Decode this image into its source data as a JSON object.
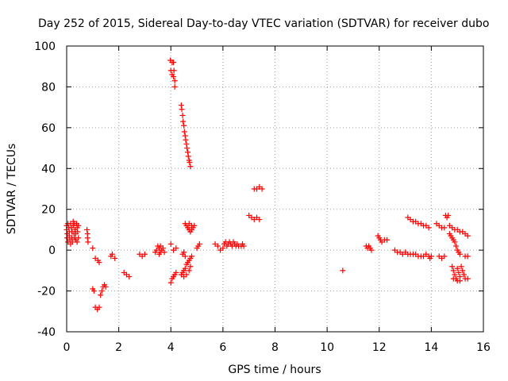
{
  "chart_data": {
    "type": "scatter",
    "title": "Day 252 of 2015, Sidereal Day-to-day VTEC variation (SDTVAR) for receiver dubo",
    "xlabel": "GPS time / hours",
    "ylabel": "SDTVAR / TECUs",
    "xlim": [
      0,
      16
    ],
    "ylim": [
      -40,
      100
    ],
    "xticks": [
      "0",
      "2",
      "4",
      "6",
      "8",
      "10",
      "12",
      "14",
      "16"
    ],
    "yticks": [
      "-40",
      "-20",
      "0",
      "20",
      "40",
      "60",
      "80",
      "100"
    ],
    "grid": true,
    "marker": "plus",
    "color": "#ff0000",
    "series": [
      {
        "name": "SDTVAR",
        "points": [
          [
            0.0,
            12
          ],
          [
            0.0,
            10
          ],
          [
            0.02,
            8
          ],
          [
            0.02,
            6
          ],
          [
            0.05,
            4
          ],
          [
            0.05,
            13
          ],
          [
            0.08,
            11
          ],
          [
            0.1,
            9
          ],
          [
            0.1,
            7
          ],
          [
            0.12,
            5
          ],
          [
            0.15,
            13
          ],
          [
            0.15,
            3
          ],
          [
            0.18,
            11
          ],
          [
            0.2,
            9
          ],
          [
            0.2,
            6
          ],
          [
            0.22,
            4
          ],
          [
            0.25,
            14
          ],
          [
            0.25,
            12
          ],
          [
            0.28,
            8
          ],
          [
            0.3,
            6
          ],
          [
            0.3,
            13
          ],
          [
            0.32,
            10
          ],
          [
            0.35,
            8
          ],
          [
            0.35,
            5
          ],
          [
            0.38,
            13
          ],
          [
            0.4,
            11
          ],
          [
            0.4,
            4
          ],
          [
            0.42,
            9
          ],
          [
            0.45,
            12
          ],
          [
            0.45,
            6
          ],
          [
            0.78,
            10
          ],
          [
            0.8,
            8
          ],
          [
            0.8,
            6
          ],
          [
            0.82,
            4
          ],
          [
            1.0,
            1
          ],
          [
            1.1,
            -4
          ],
          [
            1.2,
            -5
          ],
          [
            1.25,
            -6
          ],
          [
            1.0,
            -19
          ],
          [
            1.05,
            -20
          ],
          [
            1.1,
            -28
          ],
          [
            1.18,
            -29
          ],
          [
            1.25,
            -28
          ],
          [
            1.3,
            -22
          ],
          [
            1.35,
            -20
          ],
          [
            1.4,
            -18
          ],
          [
            1.45,
            -17
          ],
          [
            1.5,
            -18
          ],
          [
            1.7,
            -3
          ],
          [
            1.75,
            -2
          ],
          [
            1.85,
            -4
          ],
          [
            2.2,
            -11
          ],
          [
            2.3,
            -12
          ],
          [
            2.4,
            -13
          ],
          [
            2.8,
            -2
          ],
          [
            2.9,
            -3
          ],
          [
            3.0,
            -2
          ],
          [
            3.4,
            -1
          ],
          [
            3.45,
            0
          ],
          [
            3.5,
            2
          ],
          [
            3.55,
            1
          ],
          [
            3.6,
            -1
          ],
          [
            3.65,
            0
          ],
          [
            3.7,
            1
          ],
          [
            3.75,
            -1
          ],
          [
            3.55,
            -2
          ],
          [
            3.6,
            2
          ],
          [
            4.0,
            3
          ],
          [
            4.1,
            0
          ],
          [
            4.2,
            1
          ],
          [
            3.98,
            93
          ],
          [
            4.05,
            92
          ],
          [
            4.1,
            92
          ],
          [
            4.0,
            88
          ],
          [
            4.05,
            86
          ],
          [
            4.1,
            85
          ],
          [
            4.15,
            83
          ],
          [
            4.15,
            80
          ],
          [
            4.12,
            88
          ],
          [
            4.4,
            71
          ],
          [
            4.42,
            69
          ],
          [
            4.45,
            66
          ],
          [
            4.47,
            63
          ],
          [
            4.5,
            61
          ],
          [
            4.52,
            58
          ],
          [
            4.55,
            56
          ],
          [
            4.57,
            54
          ],
          [
            4.6,
            52
          ],
          [
            4.62,
            50
          ],
          [
            4.65,
            48
          ],
          [
            4.67,
            46
          ],
          [
            4.7,
            44
          ],
          [
            4.72,
            43
          ],
          [
            4.75,
            41
          ],
          [
            4.0,
            -16
          ],
          [
            4.05,
            -14
          ],
          [
            4.1,
            -13
          ],
          [
            4.15,
            -12
          ],
          [
            4.2,
            -11
          ],
          [
            4.4,
            -12
          ],
          [
            4.45,
            -11
          ],
          [
            4.5,
            -10
          ],
          [
            4.55,
            -9
          ],
          [
            4.6,
            -7
          ],
          [
            4.65,
            -6
          ],
          [
            4.7,
            -5
          ],
          [
            4.75,
            -4
          ],
          [
            4.8,
            -3
          ],
          [
            4.45,
            -2
          ],
          [
            4.5,
            -1
          ],
          [
            4.55,
            -3
          ],
          [
            4.5,
            -13
          ],
          [
            4.6,
            -12
          ],
          [
            4.7,
            -10
          ],
          [
            4.75,
            -8
          ],
          [
            4.55,
            13
          ],
          [
            4.6,
            12
          ],
          [
            4.65,
            11
          ],
          [
            4.7,
            10
          ],
          [
            4.75,
            9
          ],
          [
            4.8,
            10
          ],
          [
            4.85,
            11
          ],
          [
            4.9,
            12
          ],
          [
            4.7,
            13
          ],
          [
            4.8,
            12
          ],
          [
            5.0,
            1
          ],
          [
            5.05,
            2
          ],
          [
            5.1,
            3
          ],
          [
            5.7,
            3
          ],
          [
            5.8,
            2
          ],
          [
            5.9,
            0
          ],
          [
            6.0,
            1
          ],
          [
            6.05,
            3
          ],
          [
            6.1,
            4
          ],
          [
            6.15,
            2
          ],
          [
            6.2,
            3
          ],
          [
            6.25,
            4
          ],
          [
            6.3,
            3
          ],
          [
            6.35,
            2
          ],
          [
            6.4,
            4
          ],
          [
            6.45,
            3
          ],
          [
            6.5,
            2
          ],
          [
            6.55,
            3
          ],
          [
            6.6,
            2
          ],
          [
            6.7,
            2
          ],
          [
            6.75,
            3
          ],
          [
            6.8,
            2
          ],
          [
            7.0,
            17
          ],
          [
            7.1,
            16
          ],
          [
            7.2,
            15
          ],
          [
            7.3,
            16
          ],
          [
            7.4,
            15
          ],
          [
            7.2,
            30
          ],
          [
            7.3,
            30
          ],
          [
            7.4,
            31
          ],
          [
            7.5,
            30
          ],
          [
            10.6,
            -10
          ],
          [
            11.5,
            2
          ],
          [
            11.55,
            1
          ],
          [
            11.6,
            2
          ],
          [
            11.65,
            1
          ],
          [
            11.7,
            0
          ],
          [
            11.95,
            7
          ],
          [
            12.0,
            6
          ],
          [
            12.05,
            5
          ],
          [
            12.1,
            4
          ],
          [
            12.2,
            5
          ],
          [
            12.3,
            5
          ],
          [
            12.6,
            0
          ],
          [
            12.7,
            -1
          ],
          [
            12.8,
            -1
          ],
          [
            12.9,
            -2
          ],
          [
            13.0,
            -1
          ],
          [
            13.1,
            -2
          ],
          [
            13.2,
            -2
          ],
          [
            13.3,
            -2
          ],
          [
            13.4,
            -2
          ],
          [
            13.5,
            -3
          ],
          [
            13.6,
            -3
          ],
          [
            13.7,
            -3
          ],
          [
            13.8,
            -2
          ],
          [
            13.9,
            -3
          ],
          [
            13.95,
            -4
          ],
          [
            14.0,
            -3
          ],
          [
            13.1,
            16
          ],
          [
            13.2,
            15
          ],
          [
            13.3,
            14
          ],
          [
            13.4,
            14
          ],
          [
            13.5,
            13
          ],
          [
            13.6,
            13
          ],
          [
            13.7,
            12
          ],
          [
            13.8,
            12
          ],
          [
            13.9,
            11
          ],
          [
            14.3,
            -3
          ],
          [
            14.4,
            -4
          ],
          [
            14.5,
            -3
          ],
          [
            14.2,
            13
          ],
          [
            14.3,
            12
          ],
          [
            14.4,
            11
          ],
          [
            14.5,
            11
          ],
          [
            14.55,
            17
          ],
          [
            14.6,
            16
          ],
          [
            14.65,
            17
          ],
          [
            14.7,
            8
          ],
          [
            14.75,
            7
          ],
          [
            14.8,
            6
          ],
          [
            14.85,
            5
          ],
          [
            14.9,
            4
          ],
          [
            14.95,
            2
          ],
          [
            15.0,
            0
          ],
          [
            15.05,
            -1
          ],
          [
            15.1,
            -2
          ],
          [
            14.7,
            12
          ],
          [
            14.8,
            11
          ],
          [
            14.9,
            10
          ],
          [
            15.0,
            10
          ],
          [
            15.1,
            9
          ],
          [
            15.2,
            9
          ],
          [
            15.3,
            8
          ],
          [
            15.4,
            7
          ],
          [
            14.8,
            -8
          ],
          [
            14.85,
            -10
          ],
          [
            14.9,
            -12
          ],
          [
            14.95,
            -14
          ],
          [
            15.0,
            -9
          ],
          [
            15.05,
            -11
          ],
          [
            15.1,
            -13
          ],
          [
            15.15,
            -8
          ],
          [
            15.2,
            -10
          ],
          [
            15.25,
            -12
          ],
          [
            14.85,
            -14
          ],
          [
            15.0,
            -15
          ],
          [
            15.1,
            -15
          ],
          [
            15.3,
            -3
          ],
          [
            15.4,
            -3
          ],
          [
            15.3,
            -14
          ],
          [
            15.4,
            -14
          ]
        ]
      }
    ]
  }
}
